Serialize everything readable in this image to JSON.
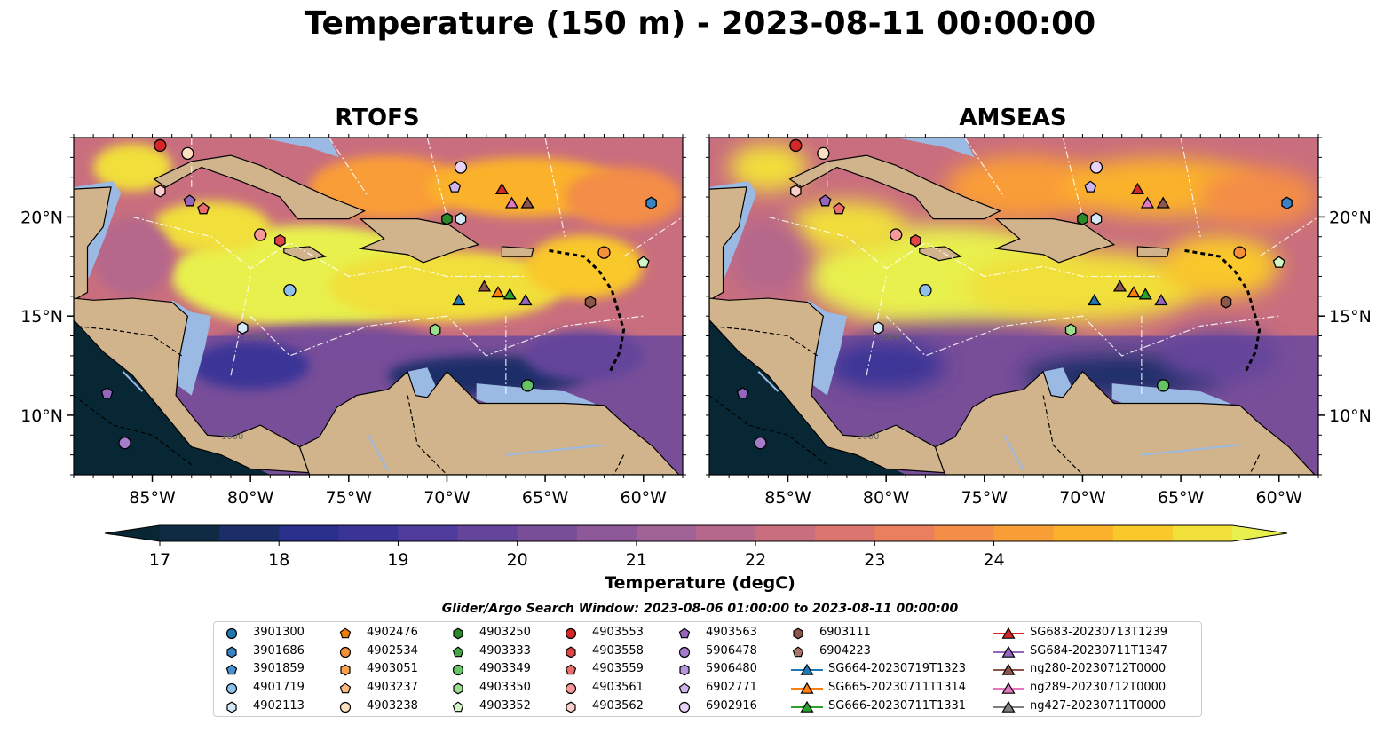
{
  "title": "Temperature (150 m) - 2023-08-11 00:00:00",
  "panels": [
    "RTOFS",
    "AMSEAS"
  ],
  "lat_labels": [
    "20°N",
    "15°N",
    "10°N"
  ],
  "lon_labels": [
    "85°W",
    "80°W",
    "75°W",
    "70°W",
    "65°W",
    "60°W"
  ],
  "contour_labels": [
    "1000",
    "1000"
  ],
  "colors": {
    "land": "#d2b48c",
    "shelf": "#9ab9e3",
    "border": "#000000"
  },
  "chart_data": {
    "type": "heatmap",
    "title": "Temperature (150 m) - 2023-08-11 00:00:00",
    "xlim": [
      -89,
      -58
    ],
    "ylim": [
      7,
      24
    ],
    "colorbar": {
      "label": "Temperature (degC)",
      "ticks": [
        "17",
        "18",
        "19",
        "20",
        "21",
        "22",
        "23",
        "24"
      ],
      "range": [
        16.75,
        24.5
      ],
      "extend": "both",
      "colors": [
        "#082734",
        "#0f2b44",
        "#1c2e67",
        "#292f8a",
        "#3b3497",
        "#4f3c9c",
        "#64459b",
        "#784e99",
        "#8c5898",
        "#a06194",
        "#b5688b",
        "#c96e7e",
        "#db7570",
        "#e97f5d",
        "#f38d47",
        "#f99d37",
        "#fbb22a",
        "#f9c82b",
        "#f1df3a",
        "#e8f04e"
      ]
    },
    "legend_title": "Glider/Argo Search Window: 2023-08-06 01:00:00 to 2023-08-11 00:00:00",
    "series": [
      {
        "name": "3901300",
        "marker": "circle",
        "color": "#1f77b4"
      },
      {
        "name": "3901686",
        "marker": "hexagon",
        "color": "#3b82c4"
      },
      {
        "name": "3901859",
        "marker": "pentagon",
        "color": "#4a90d0"
      },
      {
        "name": "4901719",
        "marker": "circle",
        "color": "#8ec1ea"
      },
      {
        "name": "4902113",
        "marker": "hexagon",
        "color": "#d4e9f8"
      },
      {
        "name": "4902476",
        "marker": "pentagon",
        "color": "#f07d0a"
      },
      {
        "name": "4902534",
        "marker": "circle",
        "color": "#f58f3a"
      },
      {
        "name": "4903051",
        "marker": "hexagon",
        "color": "#fba24d"
      },
      {
        "name": "4903237",
        "marker": "pentagon",
        "color": "#fcbb82"
      },
      {
        "name": "4903238",
        "marker": "circle",
        "color": "#fde0c2"
      },
      {
        "name": "4903250",
        "marker": "hexagon",
        "color": "#2a8a2a"
      },
      {
        "name": "4903333",
        "marker": "pentagon",
        "color": "#44a844"
      },
      {
        "name": "4903349",
        "marker": "circle",
        "color": "#66c466"
      },
      {
        "name": "4903350",
        "marker": "hexagon",
        "color": "#9adf8e"
      },
      {
        "name": "4903352",
        "marker": "pentagon",
        "color": "#d2f5c6"
      },
      {
        "name": "4903553",
        "marker": "circle",
        "color": "#d62728"
      },
      {
        "name": "4903558",
        "marker": "hexagon",
        "color": "#e04545"
      },
      {
        "name": "4903559",
        "marker": "pentagon",
        "color": "#ec6b6b"
      },
      {
        "name": "4903561",
        "marker": "circle",
        "color": "#f59896"
      },
      {
        "name": "4903562",
        "marker": "hexagon",
        "color": "#fbcdcb"
      },
      {
        "name": "4903563",
        "marker": "pentagon",
        "color": "#9467bd"
      },
      {
        "name": "5906478",
        "marker": "circle",
        "color": "#a57ccb"
      },
      {
        "name": "5906480",
        "marker": "hexagon",
        "color": "#b895db"
      },
      {
        "name": "6902771",
        "marker": "pentagon",
        "color": "#cfb3eb"
      },
      {
        "name": "6902916",
        "marker": "circle",
        "color": "#e6d3f7"
      },
      {
        "name": "6903111",
        "marker": "hexagon",
        "color": "#8c564b"
      },
      {
        "name": "6904223",
        "marker": "pentagon",
        "color": "#a9766a"
      },
      {
        "name": "SG664-20230719T1323",
        "marker": "triangle",
        "color": "#1f77b4"
      },
      {
        "name": "SG665-20230711T1314",
        "marker": "triangle",
        "color": "#ff7f0e"
      },
      {
        "name": "SG666-20230711T1331",
        "marker": "triangle",
        "color": "#2ca02c"
      },
      {
        "name": "SG683-20230713T1239",
        "marker": "triangle",
        "color": "#d62728"
      },
      {
        "name": "SG684-20230711T1347",
        "marker": "triangle",
        "color": "#9467bd"
      },
      {
        "name": "ng280-20230712T0000",
        "marker": "triangle",
        "color": "#8c564b"
      },
      {
        "name": "ng289-20230712T0000",
        "marker": "triangle",
        "color": "#e377c2"
      },
      {
        "name": "ng427-20230711T0000",
        "marker": "triangle",
        "color": "#7f7f7f"
      }
    ],
    "points": [
      {
        "id": "4903553",
        "lon": -84.6,
        "lat": 23.6
      },
      {
        "id": "4903238",
        "lon": -83.2,
        "lat": 23.2
      },
      {
        "id": "4903562",
        "lon": -84.6,
        "lat": 21.3
      },
      {
        "id": "4903563",
        "lon": -83.1,
        "lat": 20.8
      },
      {
        "id": "4903559",
        "lon": -82.4,
        "lat": 20.4
      },
      {
        "id": "4903561",
        "lon": -79.5,
        "lat": 19.1
      },
      {
        "id": "4903558",
        "lon": -78.5,
        "lat": 18.8
      },
      {
        "id": "4901719",
        "lon": -78.0,
        "lat": 16.3
      },
      {
        "id": "4902113",
        "lon": -80.4,
        "lat": 14.4
      },
      {
        "id": "6902916",
        "lon": -69.3,
        "lat": 22.5
      },
      {
        "id": "6902771",
        "lon": -69.6,
        "lat": 21.5
      },
      {
        "id": "4903250",
        "lon": -70.0,
        "lat": 19.9
      },
      {
        "id": "4902113",
        "lon": -69.3,
        "lat": 19.9
      },
      {
        "id": "4902534",
        "lon": -62.0,
        "lat": 18.2
      },
      {
        "id": "4903352",
        "lon": -60.0,
        "lat": 17.7
      },
      {
        "id": "3901686",
        "lon": -59.6,
        "lat": 20.7
      },
      {
        "id": "6903111",
        "lon": -62.7,
        "lat": 15.7
      },
      {
        "id": "4903350",
        "lon": -70.6,
        "lat": 14.3
      },
      {
        "id": "4903349",
        "lon": -65.9,
        "lat": 11.5
      },
      {
        "id": "4903563",
        "lon": -87.3,
        "lat": 11.1
      },
      {
        "id": "5906478",
        "lon": -86.4,
        "lat": 8.6
      },
      {
        "id": "SG683-20230713T1239",
        "lon": -67.2,
        "lat": 21.4
      },
      {
        "id": "ng289-20230712T0000",
        "lon": -66.7,
        "lat": 20.7
      },
      {
        "id": "ng280-20230712T0000",
        "lon": -65.9,
        "lat": 20.7
      },
      {
        "id": "SG664-20230719T1323",
        "lon": -69.4,
        "lat": 15.8
      },
      {
        "id": "ng280-20230712T0000",
        "lon": -68.1,
        "lat": 16.5
      },
      {
        "id": "SG665-20230711T1314",
        "lon": -67.4,
        "lat": 16.2
      },
      {
        "id": "SG666-20230711T1331",
        "lon": -66.8,
        "lat": 16.1
      },
      {
        "id": "SG684-20230711T1347",
        "lon": -66.0,
        "lat": 15.8
      }
    ]
  }
}
